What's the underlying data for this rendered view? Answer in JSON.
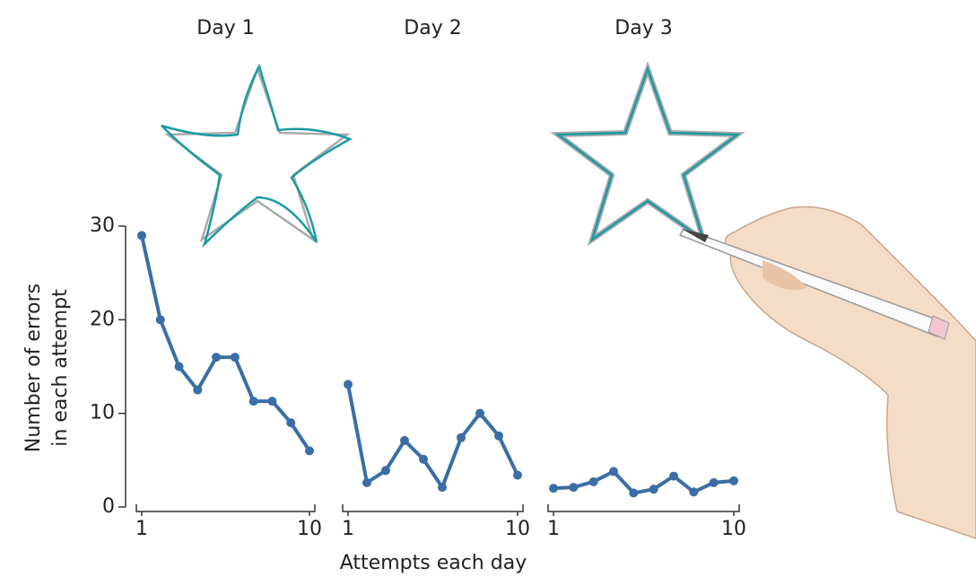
{
  "chart_data": [
    {
      "type": "line",
      "title": "Day 1",
      "ylabel": [
        "Number of errors",
        "in each attempt"
      ],
      "x": [
        1,
        2,
        3,
        4,
        5,
        6,
        7,
        8,
        9,
        10
      ],
      "values": [
        29,
        20,
        15,
        12.5,
        16,
        16,
        11.3,
        11.3,
        9,
        6
      ],
      "color": "#3a6ea5",
      "xlim": [
        1,
        10
      ],
      "xticks": [
        1,
        10
      ],
      "ylim": [
        0,
        30
      ],
      "yticks": [
        0,
        10,
        20,
        30
      ]
    },
    {
      "type": "line",
      "title": "Day 2",
      "xlabel": "Attempts each day",
      "x": [
        1,
        2,
        3,
        4,
        5,
        6,
        7,
        8,
        9,
        10
      ],
      "values": [
        13.1,
        2.6,
        3.9,
        7.1,
        5.1,
        2.1,
        7.4,
        10,
        7.6,
        3.4
      ],
      "color": "#3a6ea5",
      "xlim": [
        1,
        10
      ],
      "xticks": [
        1,
        10
      ],
      "ylim": [
        0,
        30
      ]
    },
    {
      "type": "line",
      "title": "Day 3",
      "x": [
        1,
        2,
        3,
        4,
        5,
        6,
        7,
        8,
        9,
        10
      ],
      "values": [
        2,
        2.1,
        2.7,
        3.8,
        1.5,
        1.9,
        3.3,
        1.6,
        2.6,
        2.8
      ],
      "color": "#3a6ea5",
      "xlim": [
        1,
        10
      ],
      "xticks": [
        1,
        10
      ],
      "ylim": [
        0,
        30
      ]
    }
  ]
}
